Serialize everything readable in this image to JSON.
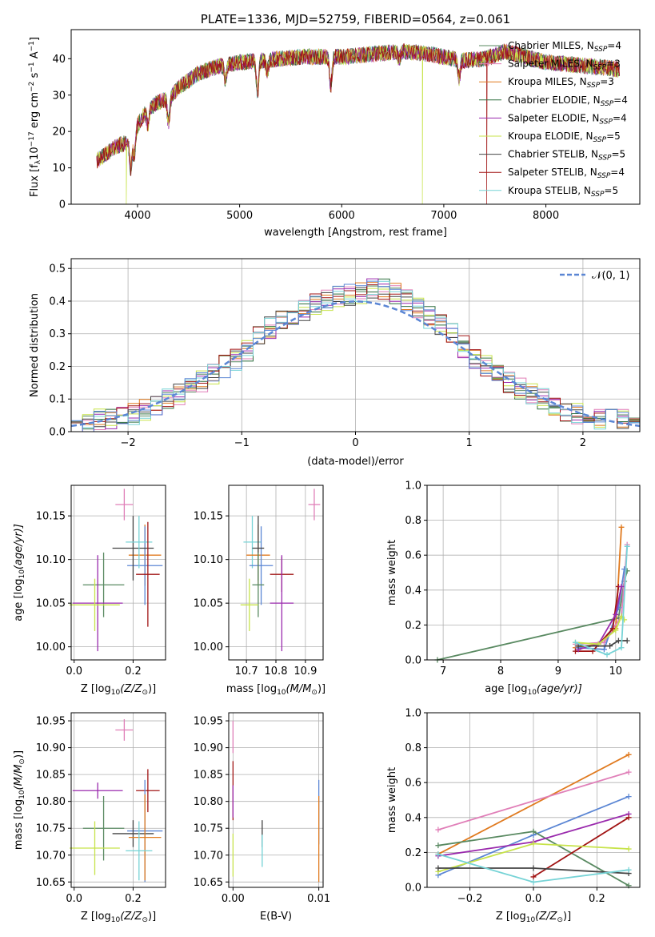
{
  "colors": {
    "Chabrier MILES": "#5a8a62",
    "Salpeter MILES": "#e07fb8",
    "Kroupa MILES": "#e07a1f",
    "Chabrier ELODIE": "#2e6e3e",
    "Salpeter ELODIE": "#9a2aad",
    "Kroupa ELODIE": "#c7e34a",
    "Chabrier STELIB": "#444444",
    "Salpeter STELIB": "#a11414",
    "Kroupa STELIB": "#76d3d6",
    "gauss": "#5b86d4",
    "blue": "#5b86d4"
  },
  "chart_data": [
    {
      "id": "spectrum",
      "type": "line",
      "title": "PLATE=1336, MJD=52759, FIBERID=0564, z=0.061",
      "xlabel": "wavelength [Angstrom, rest frame]",
      "ylabel": "Flux [f",
      "ylabel_sub": "λ",
      "ylabel_mid": "10",
      "ylabel_sup1": "−17",
      "ylabel_mid2": " erg cm",
      "ylabel_sup2": "−2",
      "ylabel_mid3": " s",
      "ylabel_sup3": "−1",
      "ylabel_mid4": " A",
      "ylabel_sup4": "−1",
      "ylabel_end": "]",
      "xlim": [
        3350,
        8920
      ],
      "ylim": [
        0,
        48
      ],
      "xticks": [
        4000,
        5000,
        6000,
        7000,
        8000
      ],
      "yticks": [
        0,
        10,
        20,
        30,
        40
      ],
      "legend_loc": "upper right",
      "legend": [
        {
          "name": "Chabrier MILES",
          "nssp": "4"
        },
        {
          "name": "Salpeter MILES",
          "nssp": "3"
        },
        {
          "name": "Kroupa MILES",
          "nssp": "3"
        },
        {
          "name": "Chabrier ELODIE",
          "nssp": "4"
        },
        {
          "name": "Salpeter ELODIE",
          "nssp": "4"
        },
        {
          "name": "Kroupa ELODIE",
          "nssp": "5"
        },
        {
          "name": "Chabrier STELIB",
          "nssp": "5"
        },
        {
          "name": "Salpeter STELIB",
          "nssp": "4"
        },
        {
          "name": "Kroupa STELIB",
          "nssp": "5"
        }
      ],
      "nssp_label": "N",
      "nssp_sub": "SSP",
      "continuum": [
        [
          3600,
          12
        ],
        [
          3700,
          14
        ],
        [
          3800,
          16
        ],
        [
          3900,
          17
        ],
        [
          3980,
          21
        ],
        [
          4100,
          26
        ],
        [
          4200,
          28
        ],
        [
          4300,
          29
        ],
        [
          4400,
          32
        ],
        [
          4500,
          34
        ],
        [
          4600,
          36
        ],
        [
          4700,
          37
        ],
        [
          4800,
          38
        ],
        [
          4900,
          38.5
        ],
        [
          5000,
          39
        ],
        [
          5200,
          39.5
        ],
        [
          5400,
          40
        ],
        [
          5600,
          40.5
        ],
        [
          5800,
          40.5
        ],
        [
          6000,
          40.5
        ],
        [
          6200,
          41
        ],
        [
          6400,
          41.5
        ],
        [
          6600,
          42
        ],
        [
          6800,
          41.5
        ],
        [
          7000,
          40.5
        ],
        [
          7200,
          39.5
        ],
        [
          7400,
          40
        ],
        [
          7600,
          42
        ],
        [
          7800,
          40.5
        ],
        [
          8000,
          39
        ],
        [
          8200,
          38.5
        ],
        [
          8400,
          38
        ],
        [
          8600,
          37.5
        ],
        [
          8720,
          37
        ]
      ],
      "absorption": [
        [
          3934,
          9
        ],
        [
          3969,
          7
        ],
        [
          4102,
          4
        ],
        [
          4304,
          7
        ],
        [
          4861,
          4
        ],
        [
          5175,
          9
        ],
        [
          5270,
          3
        ],
        [
          5893,
          8
        ],
        [
          6563,
          2
        ],
        [
          7150,
          5
        ]
      ],
      "drops": [
        {
          "series": "Kroupa ELODIE",
          "x": 3890,
          "to": 0
        },
        {
          "series": "Kroupa ELODIE",
          "x": 6790,
          "to": 0
        },
        {
          "series": "Salpeter STELIB",
          "x": 7420,
          "to": 0
        }
      ]
    },
    {
      "id": "residuals",
      "type": "histogram",
      "xlabel": "(data-model)/error",
      "ylabel": "Normed distribution",
      "xlim": [
        -2.5,
        2.5
      ],
      "ylim": [
        0,
        0.53
      ],
      "xticks": [
        -2,
        -1,
        0,
        1,
        2
      ],
      "yticks": [
        0.0,
        0.1,
        0.2,
        0.3,
        0.4,
        0.5
      ],
      "bin_width": 0.1,
      "grid": true,
      "legend_loc": "upper right",
      "gauss_label": "𝒩(0, 1)",
      "envelope": [
        [
          -2.5,
          0.02
        ],
        [
          -2.2,
          0.04
        ],
        [
          -2.0,
          0.05
        ],
        [
          -1.8,
          0.07
        ],
        [
          -1.6,
          0.11
        ],
        [
          -1.4,
          0.14
        ],
        [
          -1.2,
          0.19
        ],
        [
          -1.0,
          0.23
        ],
        [
          -0.8,
          0.31
        ],
        [
          -0.6,
          0.35
        ],
        [
          -0.4,
          0.38
        ],
        [
          -0.2,
          0.41
        ],
        [
          0.0,
          0.42
        ],
        [
          0.2,
          0.44
        ],
        [
          0.4,
          0.42
        ],
        [
          0.6,
          0.36
        ],
        [
          0.8,
          0.32
        ],
        [
          1.0,
          0.24
        ],
        [
          1.2,
          0.19
        ],
        [
          1.4,
          0.14
        ],
        [
          1.6,
          0.11
        ],
        [
          1.8,
          0.07
        ],
        [
          2.0,
          0.05
        ],
        [
          2.2,
          0.04
        ],
        [
          2.5,
          0.03
        ]
      ]
    },
    {
      "id": "age-vs-Z",
      "type": "errorbar",
      "xlabel_pre": "Z [log",
      "xlabel_sub": "10",
      "xlabel_post": "(Z/Z",
      "xlabel_sun": "⊙",
      "xlabel_end": ")]",
      "ylabel_pre": "age  [log",
      "ylabel_sub": "10",
      "ylabel_post": "(age/yr)]",
      "xlim": [
        -0.01,
        0.31
      ],
      "ylim": [
        9.985,
        10.185
      ],
      "xticks": [
        0.0,
        0.2
      ],
      "xticklabels": [
        "0.0",
        "0.2"
      ],
      "yticks": [
        10.0,
        10.05,
        10.1,
        10.15
      ],
      "yticklabels": [
        "10.00",
        "10.05",
        "10.10",
        "10.15"
      ],
      "points": [
        {
          "series": "Salpeter MILES",
          "x": 0.17,
          "xe": 0.03,
          "y": 10.163,
          "ye": 0.018
        },
        {
          "series": "Kroupa MILES",
          "x": 0.24,
          "xe": 0.055,
          "y": 10.105,
          "ye": 0.035
        },
        {
          "series": "blue",
          "x": 0.24,
          "xe": 0.06,
          "y": 10.093,
          "ye": 0.045
        },
        {
          "series": "Chabrier STELIB",
          "x": 0.2,
          "xe": 0.07,
          "y": 10.113,
          "ye": 0.037
        },
        {
          "series": "Kroupa STELIB",
          "x": 0.22,
          "xe": 0.045,
          "y": 10.12,
          "ye": 0.03
        },
        {
          "series": "Salpeter STELIB",
          "x": 0.25,
          "xe": 0.04,
          "y": 10.083,
          "ye": 0.06
        },
        {
          "series": "Chabrier MILES",
          "x": 0.1,
          "xe": 0.07,
          "y": 10.071,
          "ye": 0.037
        },
        {
          "series": "Salpeter ELODIE",
          "x": 0.08,
          "xe": 0.085,
          "y": 10.05,
          "ye": 0.055
        },
        {
          "series": "Kroupa ELODIE",
          "x": 0.07,
          "xe": 0.085,
          "y": 10.048,
          "ye": 0.03
        }
      ]
    },
    {
      "id": "age-vs-mass",
      "type": "errorbar",
      "xlabel_pre": "mass [log",
      "xlabel_sub": "10",
      "xlabel_post": "(M/M",
      "xlabel_sun": "⊙",
      "xlabel_end": ")]",
      "xlim": [
        10.64,
        10.96
      ],
      "ylim": [
        9.985,
        10.185
      ],
      "xticks": [
        10.7,
        10.8,
        10.9
      ],
      "xticklabels": [
        "10.7",
        "10.8",
        "10.9"
      ],
      "yticks": [
        10.0,
        10.05,
        10.1,
        10.15
      ],
      "yticklabels": [
        "10.00",
        "10.05",
        "10.10",
        "10.15"
      ],
      "points": [
        {
          "series": "Salpeter MILES",
          "x": 10.93,
          "xe": 0.02,
          "y": 10.163,
          "ye": 0.018
        },
        {
          "series": "Kroupa STELIB",
          "x": 10.72,
          "xe": 0.03,
          "y": 10.12,
          "ye": 0.03
        },
        {
          "series": "Kroupa MILES",
          "x": 10.74,
          "xe": 0.04,
          "y": 10.105,
          "ye": 0.035
        },
        {
          "series": "blue",
          "x": 10.75,
          "xe": 0.04,
          "y": 10.093,
          "ye": 0.045
        },
        {
          "series": "Chabrier STELIB",
          "x": 10.74,
          "xe": 0.02,
          "y": 10.113,
          "ye": 0.037
        },
        {
          "series": "Salpeter STELIB",
          "x": 10.82,
          "xe": 0.04,
          "y": 10.083,
          "ye": 0.02
        },
        {
          "series": "Chabrier MILES",
          "x": 10.74,
          "xe": 0.02,
          "y": 10.071,
          "ye": 0.037
        },
        {
          "series": "Salpeter ELODIE",
          "x": 10.82,
          "xe": 0.04,
          "y": 10.05,
          "ye": 0.055
        },
        {
          "series": "Kroupa ELODIE",
          "x": 10.71,
          "xe": 0.03,
          "y": 10.048,
          "ye": 0.03
        }
      ]
    },
    {
      "id": "weight-vs-age",
      "type": "line",
      "xlabel_pre": "age  [log",
      "xlabel_sub": "10",
      "xlabel_post": "(age/yr)]",
      "ylabel": "mass weight",
      "xlim": [
        6.72,
        10.42
      ],
      "ylim": [
        0,
        1
      ],
      "xticks": [
        7,
        8,
        9,
        10
      ],
      "yticks": [
        0,
        0.2,
        0.4,
        0.6,
        0.8,
        1.0
      ],
      "yticklabels": [
        "0.0",
        "0.2",
        "0.4",
        "0.6",
        "0.8",
        "1.0"
      ],
      "series": [
        {
          "name": "Chabrier MILES",
          "x": [
            6.9,
            10.05,
            10.15,
            10.2
          ],
          "y": [
            0.0,
            0.24,
            0.45,
            0.51
          ]
        },
        {
          "name": "Kroupa MILES",
          "x": [
            9.3,
            9.7,
            10.0,
            10.1
          ],
          "y": [
            0.07,
            0.09,
            0.18,
            0.76
          ]
        },
        {
          "name": "Salpeter MILES",
          "x": [
            9.3,
            9.8,
            10.1,
            10.2
          ],
          "y": [
            0.09,
            0.1,
            0.25,
            0.66
          ]
        },
        {
          "name": "blue",
          "x": [
            9.35,
            9.8,
            10.05,
            10.15
          ],
          "y": [
            0.07,
            0.06,
            0.3,
            0.52
          ]
        },
        {
          "name": "Salpeter STELIB",
          "x": [
            9.3,
            9.6,
            9.95,
            10.05
          ],
          "y": [
            0.05,
            0.05,
            0.18,
            0.42
          ]
        },
        {
          "name": "Salpeter ELODIE",
          "x": [
            9.35,
            9.7,
            10.0,
            10.1
          ],
          "y": [
            0.06,
            0.09,
            0.26,
            0.42
          ]
        },
        {
          "name": "Kroupa ELODIE",
          "x": [
            9.3,
            9.7,
            10.0,
            10.1,
            10.15
          ],
          "y": [
            0.1,
            0.09,
            0.17,
            0.25,
            0.23
          ]
        },
        {
          "name": "Chabrier STELIB",
          "x": [
            9.35,
            9.9,
            10.05,
            10.2
          ],
          "y": [
            0.08,
            0.08,
            0.11,
            0.11
          ]
        },
        {
          "name": "Kroupa STELIB",
          "x": [
            9.3,
            9.85,
            10.1,
            10.2
          ],
          "y": [
            0.1,
            0.03,
            0.07,
            0.65
          ]
        }
      ]
    },
    {
      "id": "mass-vs-Z",
      "type": "errorbar",
      "xlabel_pre": "Z [log",
      "xlabel_sub": "10",
      "xlabel_post": "(Z/Z",
      "xlabel_sun": "⊙",
      "xlabel_end": ")]",
      "ylabel_pre": "mass [log",
      "ylabel_sub": "10",
      "ylabel_post": "(M/M",
      "ylabel_sun": "⊙",
      "ylabel_end": ")]",
      "xlim": [
        -0.01,
        0.31
      ],
      "ylim": [
        10.64,
        10.965
      ],
      "xticks": [
        0.0,
        0.2
      ],
      "xticklabels": [
        "0.0",
        "0.2"
      ],
      "yticks": [
        10.65,
        10.7,
        10.75,
        10.8,
        10.85,
        10.9,
        10.95
      ],
      "yticklabels": [
        "10.65",
        "10.70",
        "10.75",
        "10.80",
        "10.85",
        "10.90",
        "10.95"
      ],
      "points": [
        {
          "series": "Salpeter MILES",
          "x": 0.17,
          "xe": 0.03,
          "y": 10.933,
          "ye": 0.02
        },
        {
          "series": "Salpeter STELIB",
          "x": 0.25,
          "xe": 0.04,
          "y": 10.82,
          "ye": 0.04
        },
        {
          "series": "Salpeter ELODIE",
          "x": 0.08,
          "xe": 0.085,
          "y": 10.82,
          "ye": 0.015
        },
        {
          "series": "blue",
          "x": 0.24,
          "xe": 0.06,
          "y": 10.745,
          "ye": 0.095
        },
        {
          "series": "Chabrier MILES",
          "x": 0.1,
          "xe": 0.07,
          "y": 10.75,
          "ye": 0.06
        },
        {
          "series": "Chabrier STELIB",
          "x": 0.2,
          "xe": 0.07,
          "y": 10.74,
          "ye": 0.025
        },
        {
          "series": "Kroupa MILES",
          "x": 0.24,
          "xe": 0.055,
          "y": 10.733,
          "ye": 0.08
        },
        {
          "series": "Kroupa ELODIE",
          "x": 0.07,
          "xe": 0.085,
          "y": 10.713,
          "ye": 0.05
        },
        {
          "series": "Kroupa STELIB",
          "x": 0.22,
          "xe": 0.045,
          "y": 10.708,
          "ye": 0.055
        }
      ]
    },
    {
      "id": "mass-vs-ebv",
      "type": "errorbar",
      "xlabel": "E(B-V)",
      "xlim": [
        -0.0005,
        0.0105
      ],
      "ylim": [
        10.64,
        10.965
      ],
      "xticks": [
        0.0,
        0.01
      ],
      "xticklabels": [
        "0.00",
        "0.01"
      ],
      "yticks": [
        10.65,
        10.7,
        10.75,
        10.8,
        10.85,
        10.9,
        10.95
      ],
      "yticklabels": [
        "10.65",
        "10.70",
        "10.75",
        "10.80",
        "10.85",
        "10.90",
        "10.95"
      ],
      "points": [
        {
          "series": "Salpeter MILES",
          "x": 0.0,
          "xe": 0,
          "y": 10.92,
          "ye": 0.03
        },
        {
          "series": "Salpeter STELIB",
          "x": 0.0,
          "xe": 0,
          "y": 10.82,
          "ye": 0.055
        },
        {
          "series": "Salpeter ELODIE",
          "x": 0.0,
          "xe": 0,
          "y": 10.8,
          "ye": 0.03
        },
        {
          "series": "Kroupa ELODIE",
          "x": 0.0,
          "xe": 0,
          "y": 10.7,
          "ye": 0.04
        },
        {
          "series": "Chabrier STELIB",
          "x": 0.0034,
          "xe": 0,
          "y": 10.74,
          "ye": 0.025
        },
        {
          "series": "Kroupa STELIB",
          "x": 0.0034,
          "xe": 0,
          "y": 10.708,
          "ye": 0.03
        },
        {
          "series": "blue",
          "x": 0.01,
          "xe": 0,
          "y": 10.78,
          "ye": 0.06
        },
        {
          "series": "Kroupa MILES",
          "x": 0.01,
          "xe": 0,
          "y": 10.73,
          "ye": 0.08
        }
      ]
    },
    {
      "id": "weight-vs-Z",
      "type": "line",
      "xlabel_pre": "Z [log",
      "xlabel_sub": "10",
      "xlabel_post": "(Z/Z",
      "xlabel_sun": "⊙",
      "xlabel_end": ")]",
      "ylabel": "mass weight",
      "xlim": [
        -0.335,
        0.335
      ],
      "ylim": [
        0,
        1
      ],
      "xticks": [
        -0.2,
        0.0,
        0.2
      ],
      "xticklabels": [
        "−0.2",
        "0.0",
        "0.2"
      ],
      "yticks": [
        0,
        0.2,
        0.4,
        0.6,
        0.8,
        1.0
      ],
      "yticklabels": [
        "0.0",
        "0.2",
        "0.4",
        "0.6",
        "0.8",
        "1.0"
      ],
      "series": [
        {
          "name": "Kroupa MILES",
          "x": [
            -0.3,
            0.3
          ],
          "y": [
            0.19,
            0.76
          ]
        },
        {
          "name": "Salpeter MILES",
          "x": [
            -0.3,
            0.3
          ],
          "y": [
            0.33,
            0.66
          ]
        },
        {
          "name": "blue",
          "x": [
            -0.3,
            0.0,
            0.3
          ],
          "y": [
            0.07,
            0.3,
            0.52
          ]
        },
        {
          "name": "Chabrier MILES",
          "x": [
            -0.3,
            0.0,
            0.3
          ],
          "y": [
            0.24,
            0.32,
            0.01
          ]
        },
        {
          "name": "Salpeter ELODIE",
          "x": [
            -0.3,
            0.0,
            0.3
          ],
          "y": [
            0.18,
            0.26,
            0.42
          ]
        },
        {
          "name": "Salpeter STELIB",
          "x": [
            0.0,
            0.3
          ],
          "y": [
            0.06,
            0.4
          ]
        },
        {
          "name": "Kroupa ELODIE",
          "x": [
            -0.3,
            0.0,
            0.3
          ],
          "y": [
            0.09,
            0.25,
            0.22
          ]
        },
        {
          "name": "Chabrier STELIB",
          "x": [
            -0.3,
            0.0,
            0.3
          ],
          "y": [
            0.11,
            0.11,
            0.08
          ]
        },
        {
          "name": "Kroupa STELIB",
          "x": [
            -0.3,
            0.0,
            0.3
          ],
          "y": [
            0.19,
            0.03,
            0.1
          ]
        }
      ]
    }
  ]
}
